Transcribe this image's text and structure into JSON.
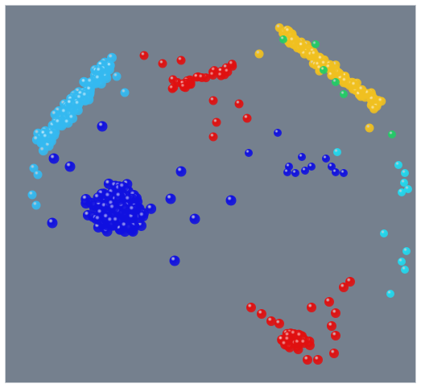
{
  "scene": {
    "background": "#75808e",
    "sphere_colors": {
      "blue": "#1010e0",
      "light_blue": "#34b9f0",
      "cyan": "#22d8ee",
      "red": "#e01010",
      "yellow": "#f0c020",
      "green": "#22cc66"
    },
    "clusters": [
      {
        "name": "light-blue-arc-cluster",
        "color": "light_blue"
      },
      {
        "name": "blue-dense-cluster",
        "color": "blue"
      },
      {
        "name": "red-upper-cluster",
        "color": "red"
      },
      {
        "name": "yellow-arc-cluster",
        "color": "yellow"
      },
      {
        "name": "blue-small-right-cluster",
        "color": "blue"
      },
      {
        "name": "cyan-right-edge-cluster",
        "color": "cyan"
      },
      {
        "name": "red-lower-cluster",
        "color": "red"
      }
    ]
  }
}
